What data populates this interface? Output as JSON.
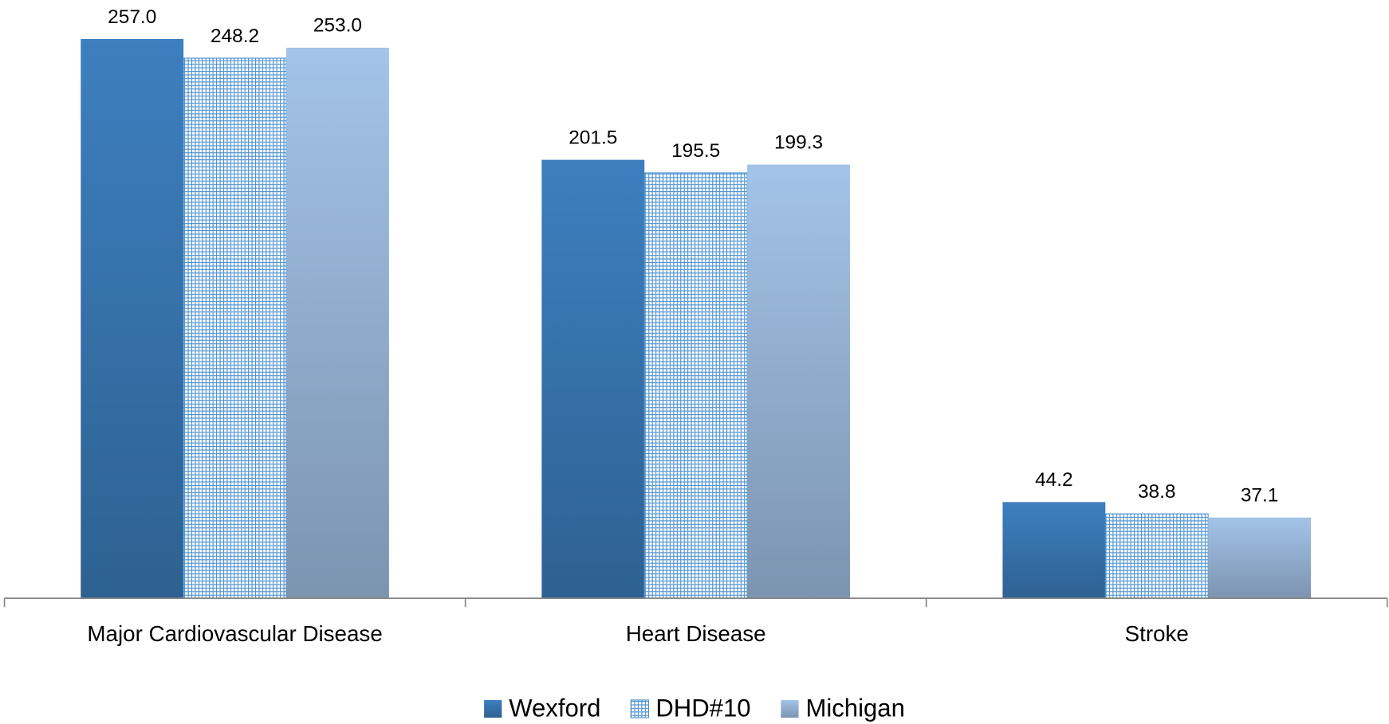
{
  "chart_data": {
    "type": "bar",
    "categories": [
      "Major Cardiovascular Disease",
      "Heart Disease",
      "Stroke"
    ],
    "series": [
      {
        "name": "Wexford",
        "color": "#3d7fbf",
        "values": [
          257.0,
          201.5,
          44.2
        ],
        "value_labels": [
          "257.0",
          "201.5",
          "44.2"
        ]
      },
      {
        "name": "DHD#10",
        "color": "#4a90d0",
        "pattern": "grid",
        "values": [
          248.2,
          195.5,
          38.8
        ],
        "value_labels": [
          "248.2",
          "195.5",
          "38.8"
        ]
      },
      {
        "name": "Michigan",
        "color": "#a3c3e8",
        "values": [
          253.0,
          199.3,
          37.1
        ],
        "value_labels": [
          "253.0",
          "199.3",
          "37.1"
        ]
      }
    ],
    "legend": "bottom"
  }
}
